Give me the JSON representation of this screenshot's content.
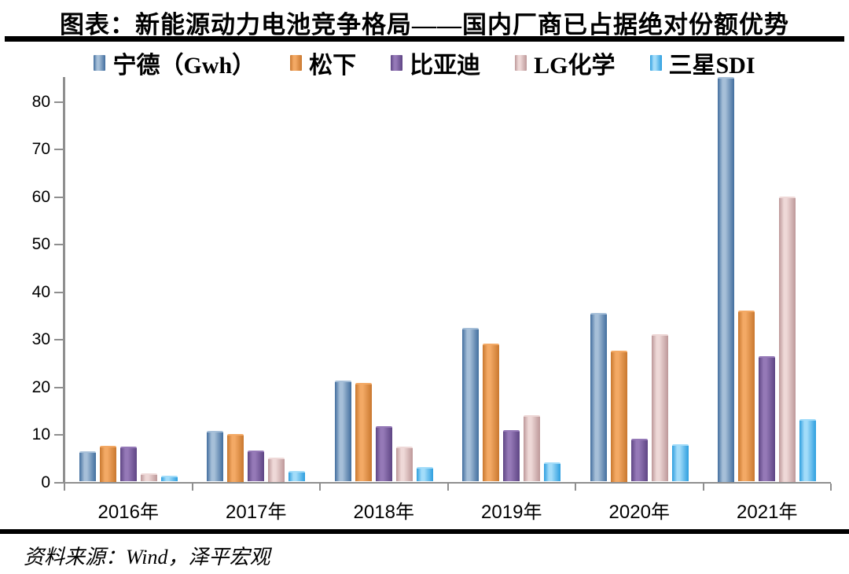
{
  "title": "图表：新能源动力电池竞争格局——国内厂商已占据绝对份额优势",
  "footer": "资料来源：Wind，泽平宏观",
  "colors": {
    "axis": "#8f8f8f",
    "rule": "#000000",
    "background": "#ffffff",
    "text": "#000000"
  },
  "chart_data": {
    "type": "bar",
    "title": "图表：新能源动力电池竞争格局——国内厂商已占据绝对份额优势",
    "xlabel": "",
    "ylabel": "",
    "categories": [
      "2016年",
      "2017年",
      "2018年",
      "2019年",
      "2020年",
      "2021年"
    ],
    "series": [
      {
        "name": "宁德（Gwh）",
        "values": [
          6.4,
          10.7,
          21.3,
          32.3,
          35.4,
          85.0
        ],
        "color_edge": "#426e9e",
        "color_mid": "#a6bfd8"
      },
      {
        "name": "松下",
        "values": [
          7.5,
          10.0,
          20.7,
          29.0,
          27.5,
          36.0
        ],
        "color_edge": "#c9782f",
        "color_mid": "#f3a965"
      },
      {
        "name": "比亚迪",
        "values": [
          7.3,
          6.5,
          11.6,
          10.8,
          9.0,
          26.3
        ],
        "color_edge": "#5e4584",
        "color_mid": "#9579b7"
      },
      {
        "name": "LG化学",
        "values": [
          1.8,
          5.0,
          7.4,
          14.0,
          31.0,
          60.0
        ],
        "color_edge": "#bd9899",
        "color_mid": "#eed8d7"
      },
      {
        "name": "三星SDI",
        "values": [
          1.2,
          2.3,
          3.0,
          4.0,
          7.8,
          13.2
        ],
        "color_edge": "#2d9edf",
        "color_mid": "#a2dcf9"
      }
    ],
    "ylim": [
      0,
      85.4
    ],
    "yticks": [
      0,
      10,
      20,
      30,
      40,
      50,
      60,
      70,
      80
    ],
    "ytick_labels": [
      "0",
      "10",
      "20",
      "30",
      "40",
      "50",
      "60",
      "70",
      "80"
    ],
    "legend_position": "top",
    "grid": false
  }
}
